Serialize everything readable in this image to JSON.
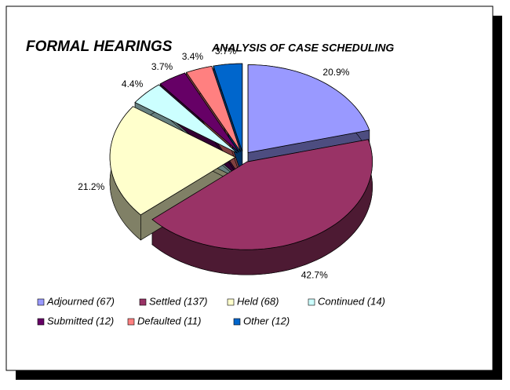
{
  "chart_data": {
    "type": "pie3d",
    "title": "FORMAL HEARINGS",
    "subtitle": "ANALYSIS OF CASE SCHEDULING",
    "categories": [
      "Adjourned (67)",
      "Settled (137)",
      "Held (68)",
      "Continued (14)",
      "Submitted (12)",
      "Defaulted (11)",
      "Other (12)"
    ],
    "values": [
      20.9,
      42.7,
      21.2,
      4.4,
      3.7,
      3.4,
      3.7
    ],
    "value_labels": [
      "20.9%",
      "42.7%",
      "21.2%",
      "4.4%",
      "3.7%",
      "3.4%",
      "3.7%"
    ],
    "colors": [
      "#9999ff",
      "#993366",
      "#ffffcc",
      "#ccffff",
      "#660066",
      "#ff8080",
      "#0066cc"
    ],
    "legend": "bottom"
  }
}
